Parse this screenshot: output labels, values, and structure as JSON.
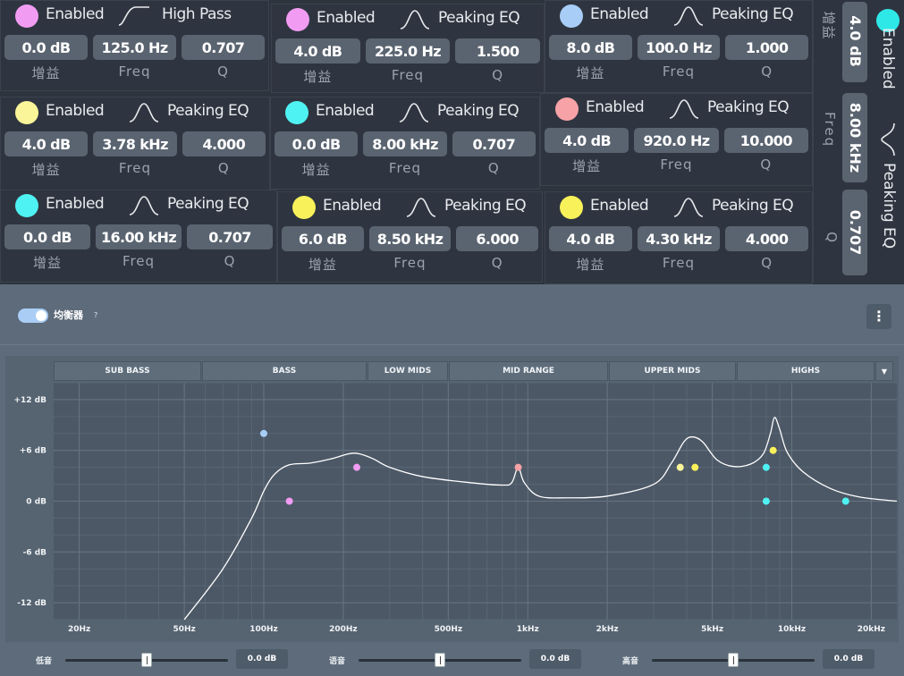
{
  "common": {
    "enabled_label": "Enabled",
    "gain_label": "增益",
    "freq_label": "Freq",
    "q_label": "Q"
  },
  "bands": [
    {
      "color": "#f19cf2",
      "type": "High Pass",
      "gain": "0.0 dB",
      "freq": "125.0 Hz",
      "q": "0.707"
    },
    {
      "color": "#f19cf2",
      "type": "Peaking EQ",
      "gain": "4.0 dB",
      "freq": "225.0 Hz",
      "q": "1.500"
    },
    {
      "color": "#a8cdf6",
      "type": "Peaking EQ",
      "gain": "8.0 dB",
      "freq": "100.0 Hz",
      "q": "1.000"
    },
    {
      "color": "#fbf59a",
      "type": "Peaking EQ",
      "gain": "4.0 dB",
      "freq": "3.78 kHz",
      "q": "4.000"
    },
    {
      "color": "#4ff2f2",
      "type": "Peaking EQ",
      "gain": "0.0 dB",
      "freq": "8.00 kHz",
      "q": "0.707"
    },
    {
      "color": "#f6a2a6",
      "type": "Peaking EQ",
      "gain": "4.0 dB",
      "freq": "920.0 Hz",
      "q": "10.000"
    },
    {
      "color": "#4ff2f2",
      "type": "Peaking EQ",
      "gain": "0.0 dB",
      "freq": "16.00 kHz",
      "q": "0.707"
    },
    {
      "color": "#f8f15a",
      "type": "Peaking EQ",
      "gain": "6.0 dB",
      "freq": "8.50 kHz",
      "q": "6.000"
    },
    {
      "color": "#f8f15a",
      "type": "Peaking EQ",
      "gain": "4.0 dB",
      "freq": "4.30 kHz",
      "q": "4.000"
    }
  ],
  "vertical_band": {
    "color": "#2ee8e8",
    "type": "Peaking EQ",
    "gain": "4.0 dB",
    "freq": "8.00 kHz",
    "q": "0.707"
  },
  "panel": {
    "title": "均衡器",
    "help": "?",
    "menu_icon": "kebab-icon",
    "toggle_on": true,
    "ranges": [
      "SUB BASS",
      "BASS",
      "LOW MIDS",
      "MID RANGE",
      "UPPER MIDS",
      "HIGHS"
    ]
  },
  "chart_data": {
    "type": "line",
    "x_scale": "log",
    "xlim": [
      16,
      25000
    ],
    "ylim": [
      -14,
      14
    ],
    "x_ticks": [
      {
        "value": 20,
        "label": "20Hz"
      },
      {
        "value": 50,
        "label": "50Hz"
      },
      {
        "value": 100,
        "label": "100Hz"
      },
      {
        "value": 200,
        "label": "200Hz"
      },
      {
        "value": 500,
        "label": "500Hz"
      },
      {
        "value": 1000,
        "label": "1kHz"
      },
      {
        "value": 2000,
        "label": "2kHz"
      },
      {
        "value": 5000,
        "label": "5kHz"
      },
      {
        "value": 10000,
        "label": "10kHz"
      },
      {
        "value": 20000,
        "label": "20kHz"
      }
    ],
    "y_ticks": [
      {
        "value": 12,
        "label": "+12 dB"
      },
      {
        "value": 6,
        "label": "+6 dB"
      },
      {
        "value": 0,
        "label": "0 dB"
      },
      {
        "value": -6,
        "label": "-6 dB"
      },
      {
        "value": -12,
        "label": "-12 dB"
      }
    ],
    "grid": true,
    "curve_color": "#ffffff",
    "response_curve": [
      [
        50,
        -14
      ],
      [
        70,
        -8
      ],
      [
        90,
        -2
      ],
      [
        100,
        1.2
      ],
      [
        110,
        3.2
      ],
      [
        125,
        4.3
      ],
      [
        150,
        4.5
      ],
      [
        180,
        5.0
      ],
      [
        210,
        5.6
      ],
      [
        230,
        5.6
      ],
      [
        260,
        5.0
      ],
      [
        300,
        4.0
      ],
      [
        400,
        2.9
      ],
      [
        600,
        2.2
      ],
      [
        800,
        1.9
      ],
      [
        870,
        2.2
      ],
      [
        920,
        4.0
      ],
      [
        970,
        2.2
      ],
      [
        1100,
        0.6
      ],
      [
        1400,
        0.4
      ],
      [
        2000,
        0.6
      ],
      [
        3000,
        2.0
      ],
      [
        3500,
        4.5
      ],
      [
        3900,
        7.0
      ],
      [
        4200,
        7.6
      ],
      [
        4600,
        7.0
      ],
      [
        5200,
        4.9
      ],
      [
        6000,
        4.1
      ],
      [
        7000,
        4.4
      ],
      [
        7800,
        5.6
      ],
      [
        8300,
        8.0
      ],
      [
        8600,
        9.9
      ],
      [
        9000,
        8.5
      ],
      [
        9600,
        5.8
      ],
      [
        11000,
        3.5
      ],
      [
        14000,
        1.5
      ],
      [
        18000,
        0.5
      ],
      [
        25000,
        0
      ]
    ],
    "points": [
      {
        "freq": 100,
        "gain": 8,
        "color": "#a8cdf6"
      },
      {
        "freq": 125,
        "gain": 0,
        "color": "#f19cf2"
      },
      {
        "freq": 225,
        "gain": 4,
        "color": "#f19cf2"
      },
      {
        "freq": 920,
        "gain": 4,
        "color": "#f6a2a6"
      },
      {
        "freq": 3780,
        "gain": 4,
        "color": "#fbf59a"
      },
      {
        "freq": 4300,
        "gain": 4,
        "color": "#f8f15a"
      },
      {
        "freq": 8000,
        "gain": 4,
        "color": "#4ff2f2"
      },
      {
        "freq": 8000,
        "gain": 0,
        "color": "#4ff2f2"
      },
      {
        "freq": 8500,
        "gain": 6,
        "color": "#f8f15a"
      },
      {
        "freq": 16000,
        "gain": 0,
        "color": "#4ff2f2"
      }
    ]
  },
  "sliders": [
    {
      "label": "低音",
      "value": "0.0 dB",
      "fraction": 0.5
    },
    {
      "label": "语音",
      "value": "0.0 dB",
      "fraction": 0.5
    },
    {
      "label": "高音",
      "value": "0.0 dB",
      "fraction": 0.5
    }
  ]
}
